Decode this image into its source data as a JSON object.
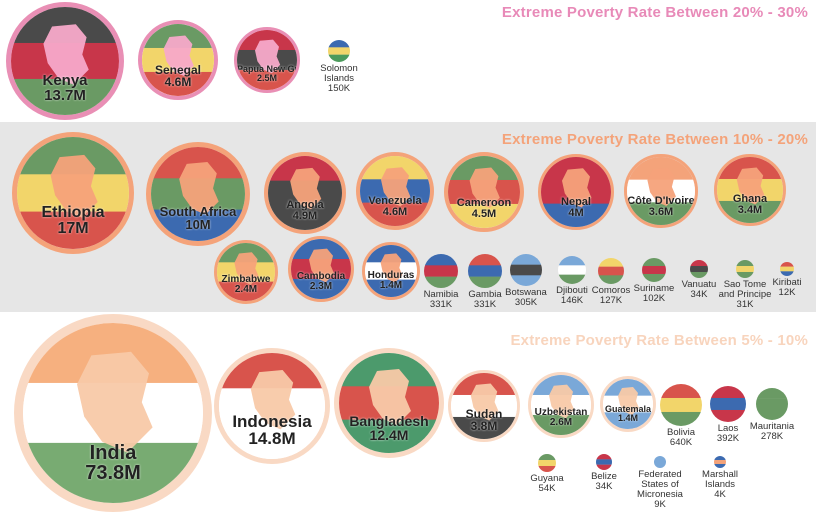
{
  "bands": [
    {
      "title": "Extreme Poverty Rate Between 20% - 30%",
      "title_color": "#e88ab8",
      "countries": [
        {
          "name": "Kenya",
          "value": "13.7M",
          "flag": [
            "#4a4a4a",
            "#c8364a",
            "#6a9a64"
          ],
          "ring": "#e98fb5",
          "shape": "#f7a9c9"
        },
        {
          "name": "Senegal",
          "value": "4.6M",
          "flag": [
            "#6a9a64",
            "#f2d56a",
            "#d8544c"
          ],
          "ring": "#e98fb5",
          "shape": "#f7a9c9"
        },
        {
          "name": "Papua New Guinea",
          "value": "2.5M",
          "flag": [
            "#c8364a",
            "#4a4a4a",
            "#d8544c"
          ],
          "ring": "#e98fb5",
          "shape": "#f7a9c9"
        },
        {
          "name": "Solomon Islands",
          "value": "150K",
          "flag": [
            "#3c6ab0",
            "#f2d56a",
            "#4c9a5c"
          ]
        }
      ]
    },
    {
      "title": "Extreme Poverty Rate Between 10% - 20%",
      "title_color": "#f4a37a",
      "countries": [
        {
          "name": "Ethiopia",
          "value": "17M",
          "flag": [
            "#6a9a64",
            "#f2d56a",
            "#d8544c"
          ],
          "ring": "#f4a37a",
          "shape": "#f6a27a"
        },
        {
          "name": "South Africa",
          "value": "10M",
          "flag": [
            "#d8544c",
            "#6a9a64",
            "#3c6ab0"
          ],
          "ring": "#f4a37a",
          "shape": "#f6a27a"
        },
        {
          "name": "Angola",
          "value": "4.9M",
          "flag": [
            "#c8364a",
            "#4a4a4a",
            "#4a4a4a"
          ],
          "ring": "#f4a37a",
          "shape": "#f6a27a"
        },
        {
          "name": "Venezuela",
          "value": "4.6M",
          "flag": [
            "#f2d56a",
            "#3c6ab0",
            "#d8544c"
          ],
          "ring": "#f4a37a",
          "shape": "#f6a27a"
        },
        {
          "name": "Cameroon",
          "value": "4.5M",
          "flag": [
            "#6a9a64",
            "#d8544c",
            "#f2d56a"
          ],
          "ring": "#f4a37a",
          "shape": "#f6a27a"
        },
        {
          "name": "Nepal",
          "value": "4M",
          "flag": [
            "#c8364a",
            "#c8364a",
            "#3c6ab0"
          ],
          "ring": "#f4a37a",
          "shape": "#f6a27a"
        },
        {
          "name": "Côte D'Ivoire",
          "value": "3.6M",
          "flag": [
            "#f4a37a",
            "#ffffff",
            "#6a9a64"
          ],
          "ring": "#f4a37a",
          "shape": "#f6a27a"
        },
        {
          "name": "Ghana",
          "value": "3.4M",
          "flag": [
            "#d8544c",
            "#f2d56a",
            "#6a9a64"
          ],
          "ring": "#f4a37a",
          "shape": "#f6a27a"
        },
        {
          "name": "Zimbabwe",
          "value": "2.4M",
          "flag": [
            "#6a9a64",
            "#f2d56a",
            "#d8544c"
          ],
          "ring": "#f4a37a",
          "shape": "#f6a27a"
        },
        {
          "name": "Cambodia",
          "value": "2.3M",
          "flag": [
            "#3c6ab0",
            "#c8364a",
            "#3c6ab0"
          ],
          "ring": "#f4a37a",
          "shape": "#f6a27a"
        },
        {
          "name": "Honduras",
          "value": "1.4M",
          "flag": [
            "#3c6ab0",
            "#ffffff",
            "#3c6ab0"
          ],
          "ring": "#f4a37a",
          "shape": "#f6a27a"
        },
        {
          "name": "Namibia",
          "value": "331K",
          "flag": [
            "#3c6ab0",
            "#c8364a",
            "#6a9a64"
          ]
        },
        {
          "name": "Gambia",
          "value": "331K",
          "flag": [
            "#d8544c",
            "#3c6ab0",
            "#6a9a64"
          ]
        },
        {
          "name": "Botswana",
          "value": "305K",
          "flag": [
            "#7aa8d8",
            "#4a4a4a",
            "#7aa8d8"
          ]
        },
        {
          "name": "Djibouti",
          "value": "146K",
          "flag": [
            "#7aa8d8",
            "#ffffff",
            "#6a9a64"
          ]
        },
        {
          "name": "Comoros",
          "value": "127K",
          "flag": [
            "#f2d56a",
            "#d8544c",
            "#6a9a64"
          ]
        },
        {
          "name": "Suriname",
          "value": "102K",
          "flag": [
            "#6a9a64",
            "#c8364a",
            "#6a9a64"
          ]
        },
        {
          "name": "Vanuatu",
          "value": "34K",
          "flag": [
            "#c8364a",
            "#4a4a4a",
            "#6a9a64"
          ]
        },
        {
          "name": "Sao Tome and Principe",
          "value": "31K",
          "flag": [
            "#6a9a64",
            "#f2d56a",
            "#6a9a64"
          ]
        },
        {
          "name": "Kiribati",
          "value": "12K",
          "flag": [
            "#d8544c",
            "#f2d56a",
            "#3c6ab0"
          ]
        }
      ]
    },
    {
      "title": "Extreme Poverty Rate Between 5% - 10%",
      "title_color": "#f8d4bd",
      "countries": [
        {
          "name": "India",
          "value": "73.8M",
          "flag": [
            "#f6b07f",
            "#ffffff",
            "#78ab72"
          ],
          "ring": "#f9d9c4",
          "shape": "#f8c9a8"
        },
        {
          "name": "Indonesia",
          "value": "14.8M",
          "flag": [
            "#d8544c",
            "#ffffff",
            "#ffffff"
          ],
          "ring": "#f9d9c4",
          "shape": "#f8c9a8"
        },
        {
          "name": "Bangladesh",
          "value": "12.4M",
          "flag": [
            "#4c9a6c",
            "#d8544c",
            "#4c9a6c"
          ],
          "ring": "#f9d9c4",
          "shape": "#f8c9a8"
        },
        {
          "name": "Sudan",
          "value": "3.8M",
          "flag": [
            "#d8544c",
            "#ffffff",
            "#4a4a4a"
          ],
          "ring": "#f9d9c4",
          "shape": "#f8c9a8"
        },
        {
          "name": "Uzbekistan",
          "value": "2.6M",
          "flag": [
            "#7aa8d8",
            "#ffffff",
            "#6a9a64"
          ],
          "ring": "#f9d9c4",
          "shape": "#f8c9a8"
        },
        {
          "name": "Guatemala",
          "value": "1.4M",
          "flag": [
            "#7aa8d8",
            "#ffffff",
            "#7aa8d8"
          ],
          "ring": "#f9d9c4",
          "shape": "#f8c9a8"
        },
        {
          "name": "Bolivia",
          "value": "640K",
          "flag": [
            "#d8544c",
            "#f2d56a",
            "#6a9a64"
          ]
        },
        {
          "name": "Laos",
          "value": "392K",
          "flag": [
            "#c8364a",
            "#3c6ab0",
            "#c8364a"
          ]
        },
        {
          "name": "Mauritania",
          "value": "278K",
          "flag": [
            "#6a9a64",
            "#6a9a64",
            "#6a9a64"
          ]
        },
        {
          "name": "Guyana",
          "value": "54K",
          "flag": [
            "#6a9a64",
            "#f2d56a",
            "#d8544c"
          ]
        },
        {
          "name": "Belize",
          "value": "34K",
          "flag": [
            "#c8364a",
            "#3c6ab0",
            "#c8364a"
          ]
        },
        {
          "name": "Federated States of Micronesia",
          "value": "9K",
          "flag": [
            "#7aa8d8",
            "#7aa8d8",
            "#7aa8d8"
          ]
        },
        {
          "name": "Marshall Islands",
          "value": "4K",
          "flag": [
            "#3c6ab0",
            "#f4a37a",
            "#3c6ab0"
          ]
        }
      ]
    }
  ]
}
